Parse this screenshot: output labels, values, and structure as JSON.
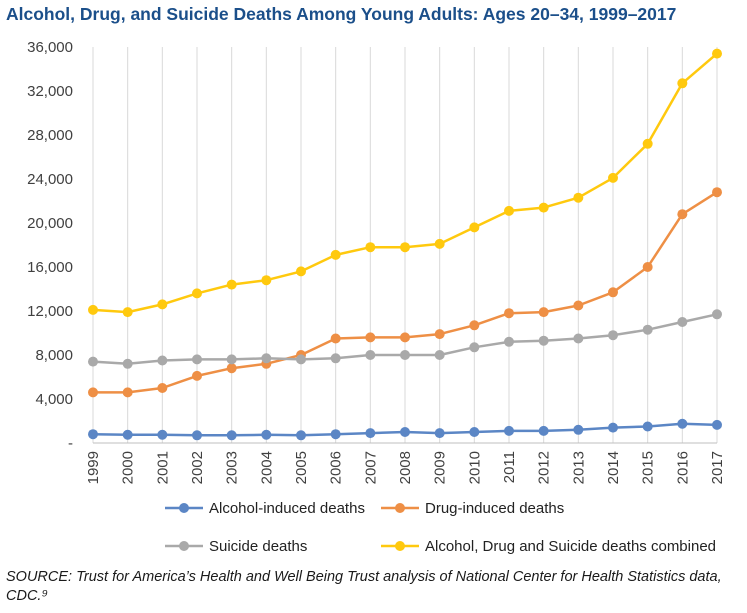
{
  "title": "Alcohol, Drug, and Suicide Deaths Among Young Adults: Ages 20–34, 1999–2017",
  "source": "SOURCE: Trust for America’s Health and Well Being Trust analysis of National Center for Health Statistics data, CDC.⁹",
  "chart_data": {
    "type": "line",
    "x": [
      "1999",
      "2000",
      "2001",
      "2002",
      "2003",
      "2004",
      "2005",
      "2006",
      "2007",
      "2008",
      "2009",
      "2010",
      "2011",
      "2012",
      "2013",
      "2014",
      "2015",
      "2016",
      "2017"
    ],
    "ylim": [
      0,
      36000
    ],
    "yticks": [
      {
        "value": 0,
        "label": "-"
      },
      {
        "value": 4000,
        "label": "4,000"
      },
      {
        "value": 8000,
        "label": "8,000"
      },
      {
        "value": 12000,
        "label": "12,000"
      },
      {
        "value": 16000,
        "label": "16,000"
      },
      {
        "value": 20000,
        "label": "20,000"
      },
      {
        "value": 24000,
        "label": "24,000"
      },
      {
        "value": 28000,
        "label": "28,000"
      },
      {
        "value": 32000,
        "label": "32,000"
      },
      {
        "value": 36000,
        "label": "36,000"
      }
    ],
    "grid": "vertical",
    "series": [
      {
        "name": "Alcohol-induced deaths",
        "color": "#5b86c5",
        "values": [
          800,
          750,
          750,
          700,
          700,
          750,
          700,
          800,
          900,
          1000,
          900,
          1000,
          1100,
          1100,
          1200,
          1400,
          1500,
          1750,
          1650
        ]
      },
      {
        "name": "Drug-induced deaths",
        "color": "#ee8f45",
        "values": [
          4600,
          4600,
          5000,
          6100,
          6800,
          7200,
          8000,
          9500,
          9600,
          9600,
          9900,
          10700,
          11800,
          11900,
          12500,
          13700,
          16000,
          20800,
          22800
        ]
      },
      {
        "name": "Suicide deaths",
        "color": "#a9a9a9",
        "values": [
          7400,
          7200,
          7500,
          7600,
          7600,
          7700,
          7600,
          7700,
          8000,
          8000,
          8000,
          8700,
          9200,
          9300,
          9500,
          9800,
          10300,
          11000,
          11700
        ]
      },
      {
        "name": "Alcohol, Drug and Suicide deaths combined",
        "color": "#ffc90e",
        "values": [
          12100,
          11900,
          12600,
          13600,
          14400,
          14800,
          15600,
          17100,
          17800,
          17800,
          18100,
          19600,
          21100,
          21400,
          22300,
          24100,
          27200,
          32700,
          35400
        ]
      }
    ],
    "legend": {
      "placement": "bottom",
      "columns": 2
    }
  }
}
